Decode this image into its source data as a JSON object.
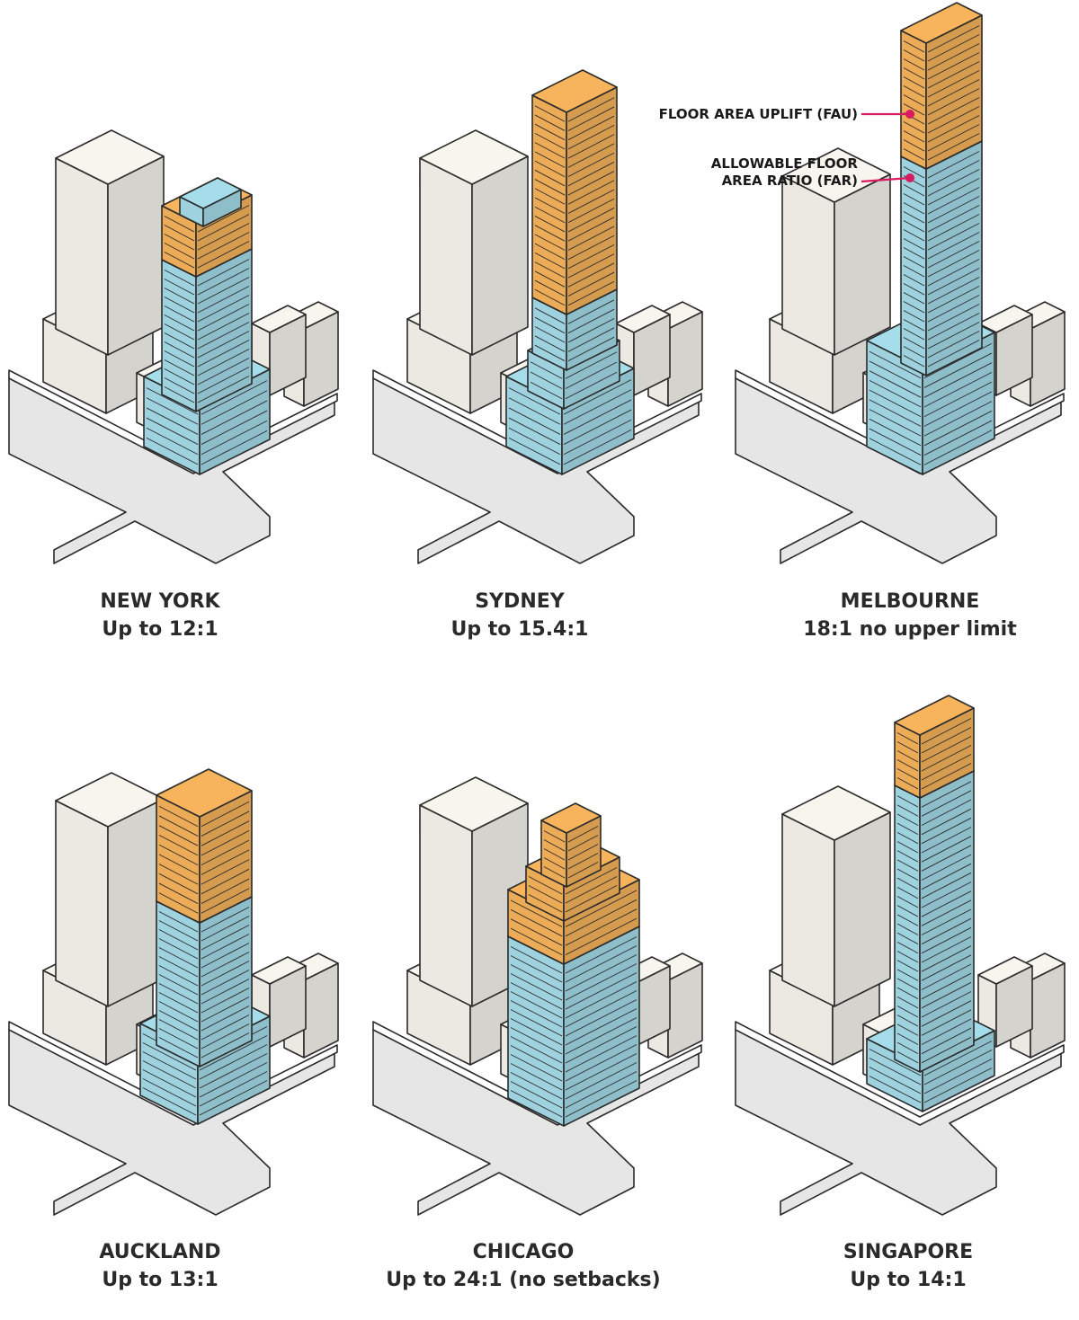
{
  "legend": {
    "fau": "FLOOR AREA UPLIFT (FAU)",
    "far_line1": "ALLOWABLE FLOOR",
    "far_line2": "AREA RATIO (FAR)"
  },
  "colors": {
    "fau": "#F8B45C",
    "far": "#A5DDEA",
    "context": "#F8F5EE",
    "road": "#E6E6E6",
    "pointer": "#D81B60",
    "outline": "#2B2B2B"
  },
  "panels": [
    {
      "city": "NEW YORK",
      "ratio": "Up to 12:1"
    },
    {
      "city": "SYDNEY",
      "ratio": "Up to 15.4:1"
    },
    {
      "city": "MELBOURNE",
      "ratio": "18:1 no upper limit"
    },
    {
      "city": "AUCKLAND",
      "ratio": "Up to 13:1"
    },
    {
      "city": "CHICAGO",
      "ratio": "Up to 24:1 (no setbacks)"
    },
    {
      "city": "SINGAPORE",
      "ratio": "Up to 14:1"
    }
  ]
}
